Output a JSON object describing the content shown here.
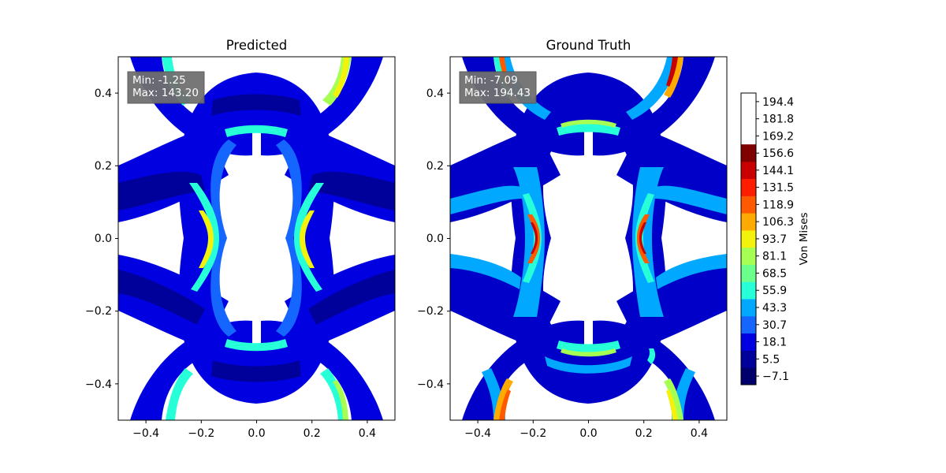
{
  "chart_data": {
    "type": "heatmap",
    "colorbar": {
      "label": "Von Mises",
      "ticks": [
        "194.4",
        "181.8",
        "169.2",
        "156.6",
        "144.1",
        "131.5",
        "118.9",
        "106.3",
        "93.7",
        "81.1",
        "68.5",
        "55.9",
        "43.3",
        "30.7",
        "18.1",
        "5.5",
        "−7.1"
      ],
      "levels": [
        -13.4,
        -0.8,
        11.8,
        24.4,
        37.0,
        49.6,
        62.2,
        74.8,
        87.4,
        100.0,
        112.6,
        125.2,
        137.8,
        150.4,
        163.0,
        175.6,
        188.1,
        200.7
      ],
      "colors": [
        "#00006d",
        "#00009a",
        "#0000e0",
        "#1565ff",
        "#00a8ff",
        "#27ffd8",
        "#6bff8b",
        "#a6ff53",
        "#f2f20d",
        "#ffaa00",
        "#ff5a00",
        "#ff1d00",
        "#c80000",
        "#800000"
      ]
    },
    "panels": [
      {
        "title": "Predicted",
        "stats": {
          "min": "Min: -1.25",
          "max": "Max: 143.20"
        },
        "xlim": [
          -0.5,
          0.5
        ],
        "ylim": [
          -0.5,
          0.5
        ],
        "xticks": [
          "−0.4",
          "−0.2",
          "0.0",
          "0.2",
          "0.4"
        ],
        "yticks": [
          "0.4",
          "0.2",
          "0.0",
          "−0.2",
          "−0.4"
        ]
      },
      {
        "title": "Ground Truth",
        "stats": {
          "min": "Min: -7.09",
          "max": "Max: 194.43"
        },
        "xlim": [
          -0.5,
          0.5
        ],
        "ylim": [
          -0.5,
          0.5
        ],
        "xticks": [
          "−0.4",
          "−0.2",
          "0.0",
          "0.2",
          "0.4"
        ],
        "yticks": [
          "0.4",
          "0.2",
          "0.0",
          "−0.2",
          "−0.4"
        ]
      }
    ]
  }
}
